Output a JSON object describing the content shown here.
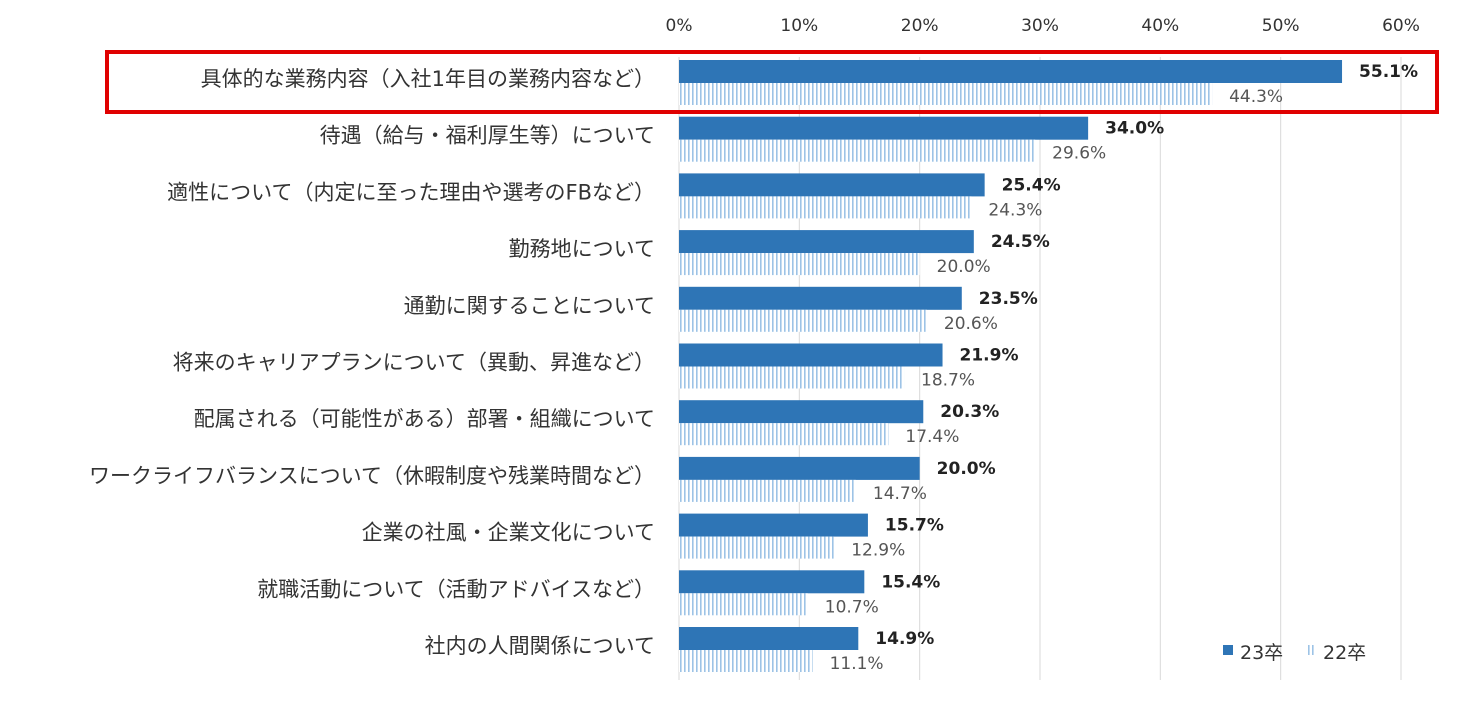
{
  "chart_data": {
    "type": "bar",
    "orientation": "horizontal",
    "title": "",
    "xlabel": "",
    "ylabel": "",
    "xlim": [
      0,
      60
    ],
    "grid": true,
    "x_ticks": [
      "0%",
      "10%",
      "20%",
      "30%",
      "40%",
      "50%",
      "60%"
    ],
    "legend_position": "bottom-right",
    "categories": [
      "具体的な業務内容（入社1年目の業務内容など）",
      "待遇（給与・福利厚生等）について",
      "適性について（内定に至った理由や選考のFBなど）",
      "勤務地について",
      "通勤に関することについて",
      "将来のキャリアプランについて（異動、昇進など）",
      "配属される（可能性がある）部署・組織について",
      "ワークライフバランスについて（休暇制度や残業時間など）",
      "企業の社風・企業文化について",
      "就職活動について（活動アドバイスなど）",
      "社内の人間関係について"
    ],
    "series": [
      {
        "name": "23卒",
        "color": "#2e75b6",
        "values": [
          55.1,
          34.0,
          25.4,
          24.5,
          23.5,
          21.9,
          20.3,
          20.0,
          15.7,
          15.4,
          14.9
        ],
        "labels": [
          "55.1%",
          "34.0%",
          "25.4%",
          "24.5%",
          "23.5%",
          "21.9%",
          "20.3%",
          "20.0%",
          "15.7%",
          "15.4%",
          "14.9%"
        ]
      },
      {
        "name": "22卒",
        "color": "#9dc3e6",
        "pattern": "vertical-stripes",
        "values": [
          44.3,
          29.6,
          24.3,
          20.0,
          20.6,
          18.7,
          17.4,
          14.7,
          12.9,
          10.7,
          11.1
        ],
        "labels": [
          "44.3%",
          "29.6%",
          "24.3%",
          "20.0%",
          "20.6%",
          "18.7%",
          "17.4%",
          "14.7%",
          "12.9%",
          "10.7%",
          "11.1%"
        ]
      }
    ],
    "highlight_index": 0,
    "highlight_color": "#e00000"
  }
}
